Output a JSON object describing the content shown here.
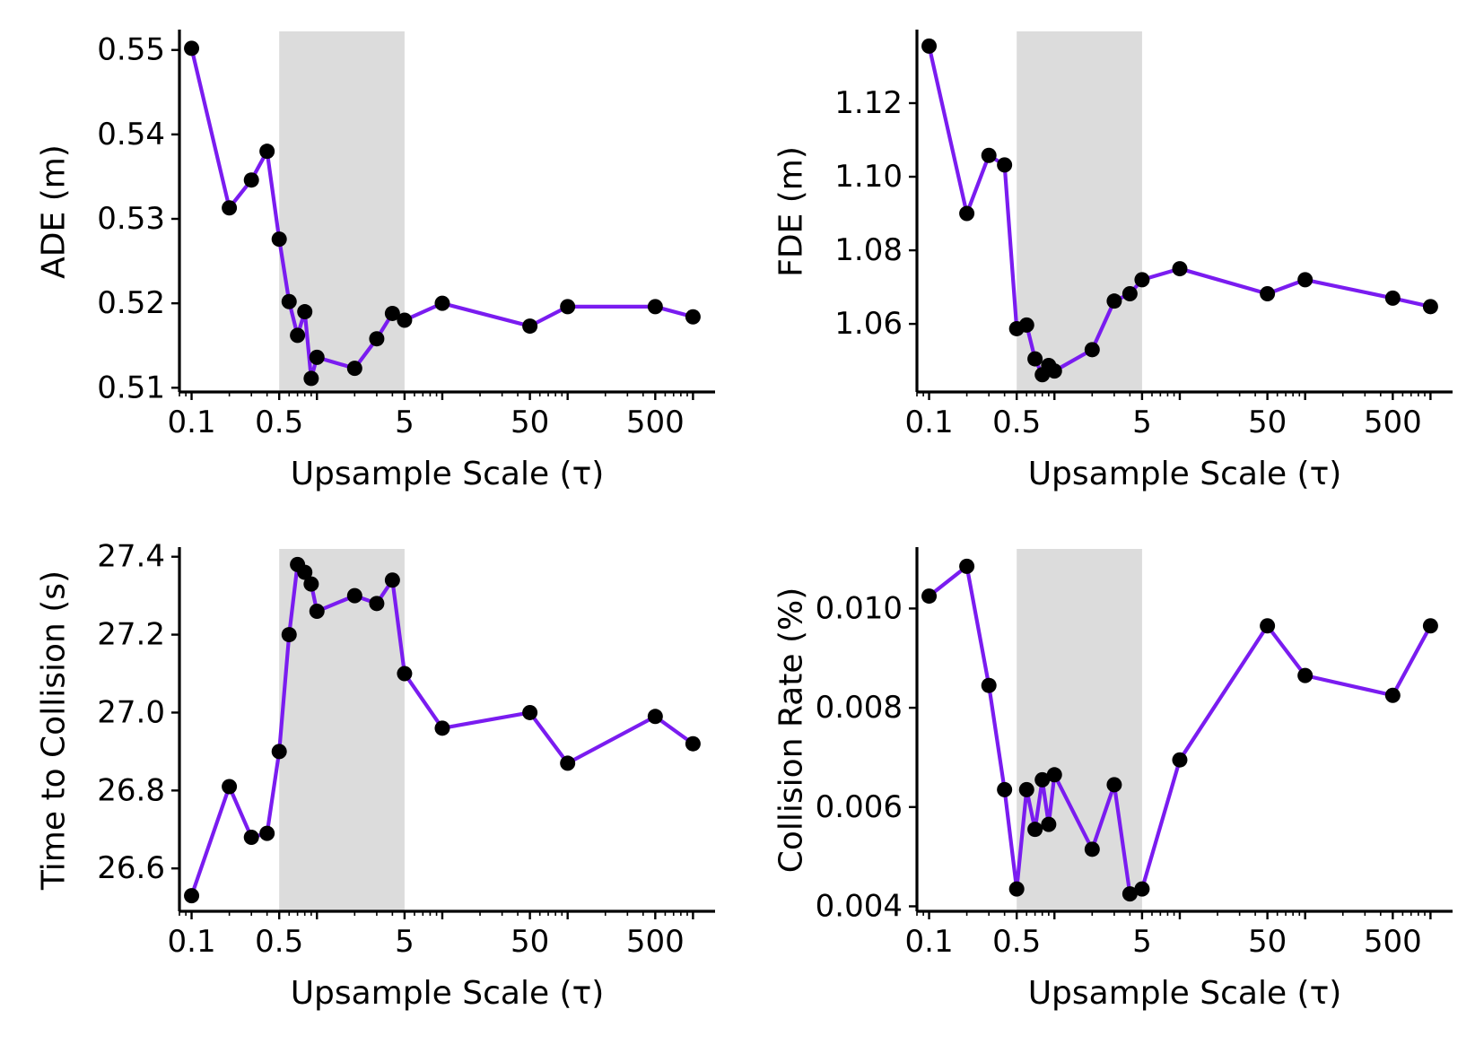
{
  "chart_data": [
    {
      "type": "line",
      "xscale": "log",
      "xlabel": "Upsample Scale (τ)",
      "ylabel": "ADE (m)",
      "xticks": [
        0.1,
        0.5,
        5,
        50,
        500
      ],
      "xtick_labels": [
        "0.1",
        "0.5",
        "5",
        "50",
        "500"
      ],
      "xlim": [
        0.08,
        1500
      ],
      "ylim": [
        0.5095,
        0.5522
      ],
      "yticks": [
        0.51,
        0.52,
        0.53,
        0.54,
        0.55
      ],
      "ytick_labels": [
        "0.51",
        "0.52",
        "0.53",
        "0.54",
        "0.55"
      ],
      "highlight_x": [
        0.5,
        5
      ],
      "x": [
        0.1,
        0.2,
        0.3,
        0.4,
        0.5,
        0.6,
        0.7,
        0.8,
        0.9,
        1.0,
        2.0,
        3.0,
        4.0,
        5.0,
        10,
        50,
        100,
        500,
        1000
      ],
      "y": [
        0.5502,
        0.5313,
        0.5346,
        0.538,
        0.5276,
        0.5202,
        0.5162,
        0.519,
        0.5111,
        0.5136,
        0.5123,
        0.5158,
        0.5188,
        0.518,
        0.52,
        0.5173,
        0.5196,
        0.5196,
        0.5184
      ],
      "line_color": "#7a1cf0",
      "marker_color": "#000000",
      "highlight_color": "#dcdcdc"
    },
    {
      "type": "line",
      "xscale": "log",
      "xlabel": "Upsample Scale (τ)",
      "ylabel": "FDE (m)",
      "xticks": [
        0.1,
        0.5,
        5,
        50,
        500
      ],
      "xtick_labels": [
        "0.1",
        "0.5",
        "5",
        "50",
        "500"
      ],
      "xlim": [
        0.08,
        1500
      ],
      "ylim": [
        1.0415,
        1.1395
      ],
      "yticks": [
        1.06,
        1.08,
        1.1,
        1.12
      ],
      "ytick_labels": [
        "1.06",
        "1.08",
        "1.10",
        "1.12"
      ],
      "highlight_x": [
        0.5,
        5
      ],
      "x": [
        0.1,
        0.2,
        0.3,
        0.4,
        0.5,
        0.6,
        0.7,
        0.8,
        0.9,
        1.0,
        2.0,
        3.0,
        4.0,
        5.0,
        10,
        50,
        100,
        500,
        1000
      ],
      "y": [
        1.1355,
        1.09,
        1.1058,
        1.1032,
        1.0587,
        1.0597,
        1.0505,
        1.0462,
        1.0487,
        1.0472,
        1.053,
        1.0662,
        1.0682,
        1.072,
        1.075,
        1.0682,
        1.072,
        1.067,
        1.0647
      ],
      "line_color": "#7a1cf0",
      "marker_color": "#000000",
      "highlight_color": "#dcdcdc"
    },
    {
      "type": "line",
      "xscale": "log",
      "xlabel": "Upsample Scale (τ)",
      "ylabel": "Time to Collision (s)",
      "xticks": [
        0.1,
        0.5,
        5,
        50,
        500
      ],
      "xtick_labels": [
        "0.1",
        "0.5",
        "5",
        "50",
        "500"
      ],
      "xlim": [
        0.08,
        1500
      ],
      "ylim": [
        26.49,
        27.42
      ],
      "yticks": [
        26.6,
        26.8,
        27.0,
        27.2,
        27.4
      ],
      "ytick_labels": [
        "26.6",
        "26.8",
        "27.0",
        "27.2",
        "27.4"
      ],
      "highlight_x": [
        0.5,
        5
      ],
      "x": [
        0.1,
        0.2,
        0.3,
        0.4,
        0.5,
        0.6,
        0.7,
        0.8,
        0.9,
        1.0,
        2.0,
        3.0,
        4.0,
        5.0,
        10,
        50,
        100,
        500,
        1000
      ],
      "y": [
        26.53,
        26.81,
        26.68,
        26.69,
        26.9,
        27.2,
        27.38,
        27.36,
        27.33,
        27.26,
        27.3,
        27.28,
        27.34,
        27.1,
        26.96,
        27.0,
        26.87,
        26.99,
        26.92
      ],
      "line_color": "#7a1cf0",
      "marker_color": "#000000",
      "highlight_color": "#dcdcdc"
    },
    {
      "type": "line",
      "xscale": "log",
      "xlabel": "Upsample Scale (τ)",
      "ylabel": "Collision Rate (%)",
      "xticks": [
        0.1,
        0.5,
        5,
        50,
        500
      ],
      "xtick_labels": [
        "0.1",
        "0.5",
        "5",
        "50",
        "500"
      ],
      "xlim": [
        0.08,
        1500
      ],
      "ylim": [
        0.0039,
        0.0112
      ],
      "yticks": [
        0.004,
        0.006,
        0.008,
        0.01
      ],
      "ytick_labels": [
        "0.004",
        "0.006",
        "0.008",
        "0.010"
      ],
      "highlight_x": [
        0.5,
        5
      ],
      "x": [
        0.1,
        0.2,
        0.3,
        0.4,
        0.5,
        0.6,
        0.7,
        0.8,
        0.9,
        1.0,
        2.0,
        3.0,
        4.0,
        5.0,
        10,
        50,
        100,
        500,
        1000
      ],
      "y": [
        0.01025,
        0.01085,
        0.00845,
        0.00635,
        0.00435,
        0.00635,
        0.00555,
        0.00655,
        0.00565,
        0.00665,
        0.00515,
        0.00645,
        0.00425,
        0.00435,
        0.00695,
        0.00965,
        0.00865,
        0.00825,
        0.00965
      ],
      "line_color": "#7a1cf0",
      "marker_color": "#000000",
      "highlight_color": "#dcdcdc"
    }
  ]
}
